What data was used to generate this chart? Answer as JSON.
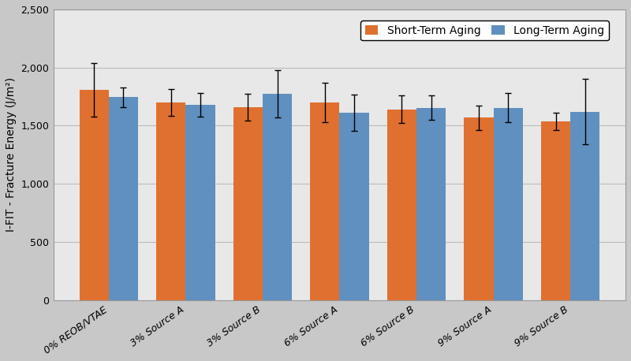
{
  "categories": [
    "0% REOB/VTAE",
    "3% Source A",
    "3% Source B",
    "6% Source A",
    "6% Source B",
    "9% Source A",
    "9% Source B"
  ],
  "short_term_values": [
    1810,
    1700,
    1660,
    1700,
    1640,
    1570,
    1535
  ],
  "long_term_values": [
    1745,
    1680,
    1775,
    1610,
    1655,
    1655,
    1620
  ],
  "short_term_errors": [
    230,
    115,
    115,
    170,
    120,
    105,
    75
  ],
  "long_term_errors": [
    85,
    100,
    205,
    155,
    105,
    125,
    280
  ],
  "short_term_color": "#E07030",
  "long_term_color": "#6090C0",
  "ylabel": "I-FIT - Fracture Energy (J/m²)",
  "ylim": [
    0,
    2500
  ],
  "yticks": [
    0,
    500,
    1000,
    1500,
    2000,
    2500
  ],
  "ytick_labels": [
    "0",
    "500",
    "1,000",
    "1,500",
    "2,000",
    "2,500"
  ],
  "plot_bg_color": "#E8E8E8",
  "fig_bg_color": "#C8C8C8",
  "legend_short": "Short-Term Aging",
  "legend_long": "Long-Term Aging",
  "bar_width": 0.38,
  "axis_fontsize": 10,
  "tick_fontsize": 9,
  "legend_fontsize": 10
}
